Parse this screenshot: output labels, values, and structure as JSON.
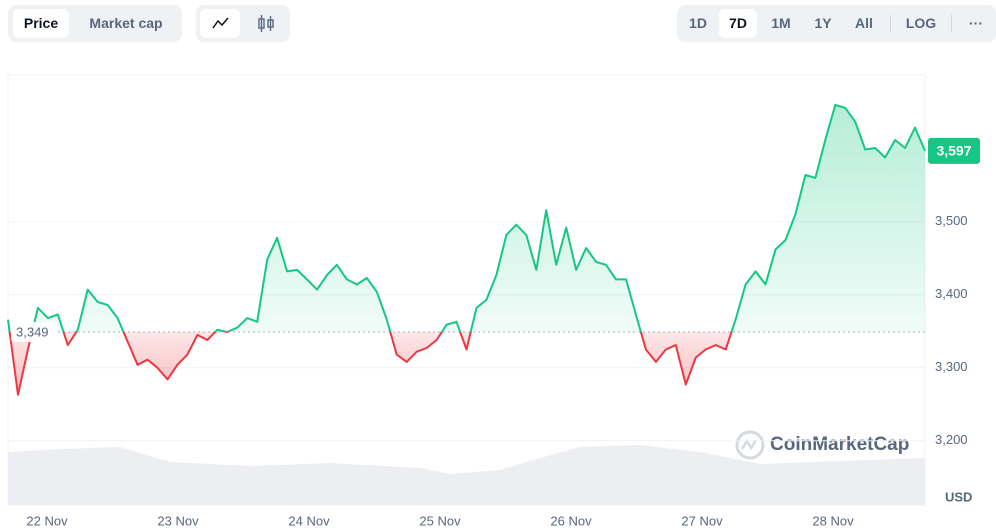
{
  "tabs": [
    "Price",
    "Market cap"
  ],
  "ranges": [
    "1D",
    "7D",
    "1M",
    "1Y",
    "All"
  ],
  "scale_button": "LOG",
  "more_button": "···",
  "chart_data": {
    "type": "line",
    "watermark": "CoinMarketCap",
    "currency": "USD",
    "x_labels": [
      "22 Nov",
      "23 Nov",
      "24 Nov",
      "25 Nov",
      "26 Nov",
      "27 Nov",
      "28 Nov"
    ],
    "baseline": 3349,
    "baseline_label": "3,349",
    "last_value_label": "3,597",
    "ylim": [
      3112,
      3701
    ],
    "yticks": [
      {
        "value": 3200,
        "label": "3,200"
      },
      {
        "value": 3300,
        "label": "3,300"
      },
      {
        "value": 3400,
        "label": "3,400"
      },
      {
        "value": 3500,
        "label": "3,500"
      }
    ],
    "grid": true,
    "up_color": "#16c784",
    "down_color": "#ea3943",
    "series": [
      {
        "values": [
          3366,
          3263,
          3325,
          3382,
          3368,
          3373,
          3331,
          3352,
          3407,
          3390,
          3386,
          3368,
          3336,
          3304,
          3311,
          3300,
          3284,
          3304,
          3318,
          3345,
          3338,
          3352,
          3349,
          3355,
          3368,
          3363,
          3448,
          3478,
          3432,
          3434,
          3421,
          3407,
          3427,
          3441,
          3421,
          3414,
          3423,
          3404,
          3366,
          3318,
          3308,
          3322,
          3327,
          3338,
          3359,
          3363,
          3325,
          3382,
          3393,
          3427,
          3482,
          3496,
          3482,
          3434,
          3516,
          3441,
          3492,
          3434,
          3464,
          3445,
          3441,
          3421,
          3421,
          3373,
          3325,
          3308,
          3325,
          3331,
          3277,
          3314,
          3325,
          3331,
          3325,
          3366,
          3414,
          3432,
          3414,
          3462,
          3475,
          3510,
          3564,
          3560,
          3612,
          3660,
          3656,
          3637,
          3599,
          3601,
          3588,
          3612,
          3601,
          3629,
          3597
        ]
      }
    ]
  }
}
